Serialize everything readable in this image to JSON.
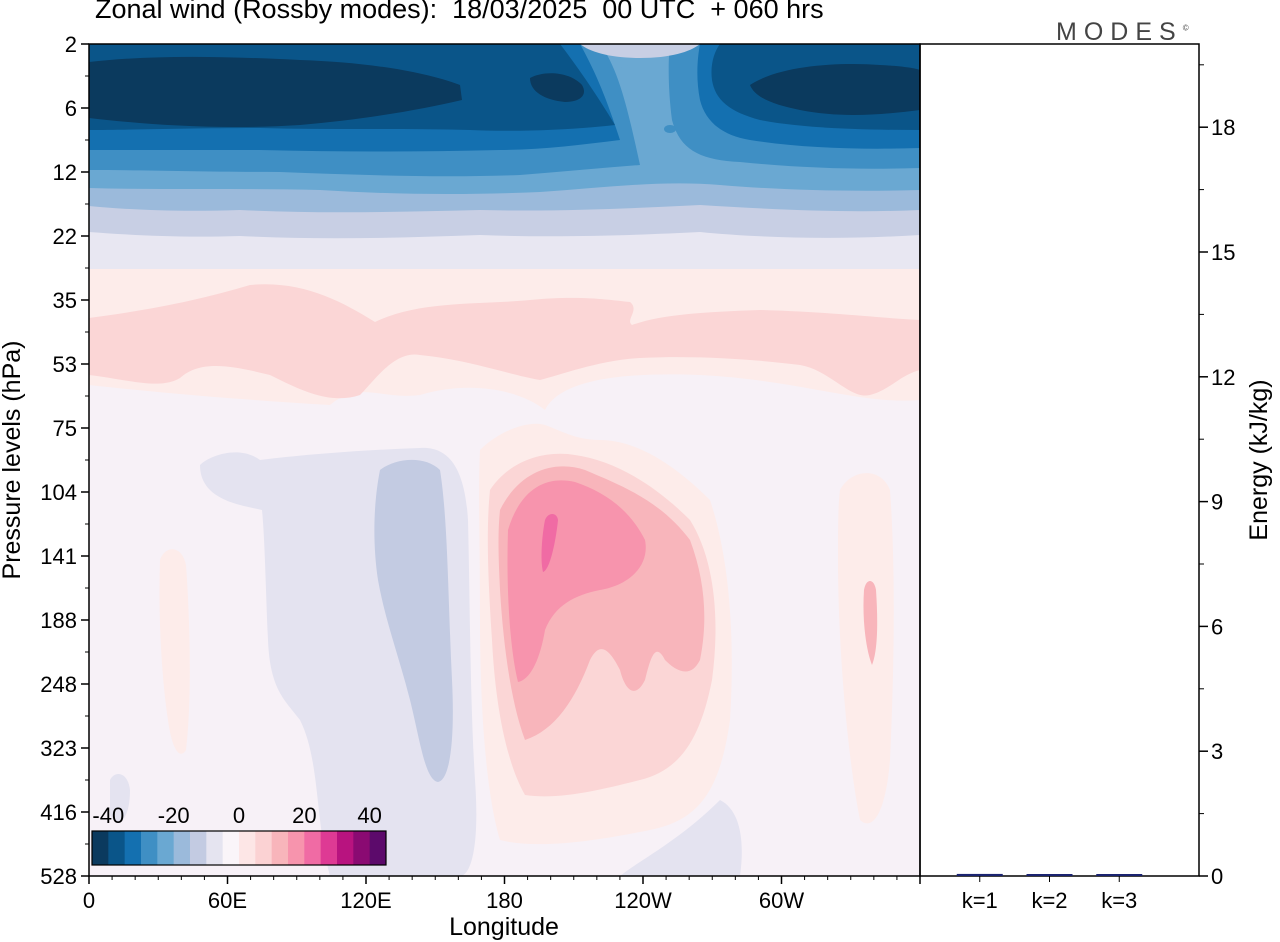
{
  "chart_data": {
    "type": "heatmap",
    "title": "Zonal wind (Rossby modes):  18/03/2025  00 UTC  + 060 hrs",
    "xlabel": "Longitude",
    "ylabel": "Pressure levels (hPa)",
    "x_ticks": [
      "0",
      "60E",
      "120E",
      "180",
      "120W",
      "60W"
    ],
    "x_tick_degrees": [
      0,
      60,
      120,
      180,
      240,
      300
    ],
    "xlim": [
      0,
      360
    ],
    "y_levels": [
      2,
      6,
      12,
      22,
      35,
      53,
      75,
      104,
      141,
      188,
      248,
      323,
      416,
      528
    ],
    "y_scale": "categorical-levels",
    "colorbar": {
      "ticks": [
        "-40",
        "-20",
        "0",
        "20",
        "40"
      ],
      "range": [
        -45,
        45
      ],
      "step": 5,
      "colors": [
        "#0b3a5e",
        "#0a5589",
        "#1470b0",
        "#3f8fc4",
        "#6aa8d2",
        "#9bbadb",
        "#c3cbe2",
        "#e5e4f0",
        "#faf5f9",
        "#fde6e6",
        "#fbd2d3",
        "#f8b5bb",
        "#f794ad",
        "#f06ba4",
        "#de3a94",
        "#b8137f",
        "#8a0a72",
        "#5c0a6b"
      ]
    },
    "contour_regions": [
      {
        "value": -35,
        "desc": "strong easterlies 2-10 hPa"
      },
      {
        "value": -20,
        "desc": "easterlies 6-16 hPa"
      },
      {
        "value": 7,
        "desc": "weak westerlies 30-60 hPa"
      },
      {
        "value": -4,
        "desc": "weak easterlies 90-350 hPa near 120E"
      },
      {
        "value": 30,
        "desc": "westerly jet core near 170W, 110-250 hPa"
      },
      {
        "value": 15,
        "desc": "westerlies near 30W, 120-250 hPa"
      }
    ],
    "energy_panel": {
      "ylabel": "Energy (kJ/kg)",
      "ylim": [
        0,
        20
      ],
      "y_ticks": [
        0,
        3,
        6,
        9,
        12,
        15,
        18
      ],
      "categories": [
        "k=1",
        "k=2",
        "k=3"
      ],
      "values": [
        0.05,
        0.02,
        0.02
      ],
      "bar_color": "#1a2370"
    }
  },
  "branding": {
    "logo": "MODES"
  }
}
